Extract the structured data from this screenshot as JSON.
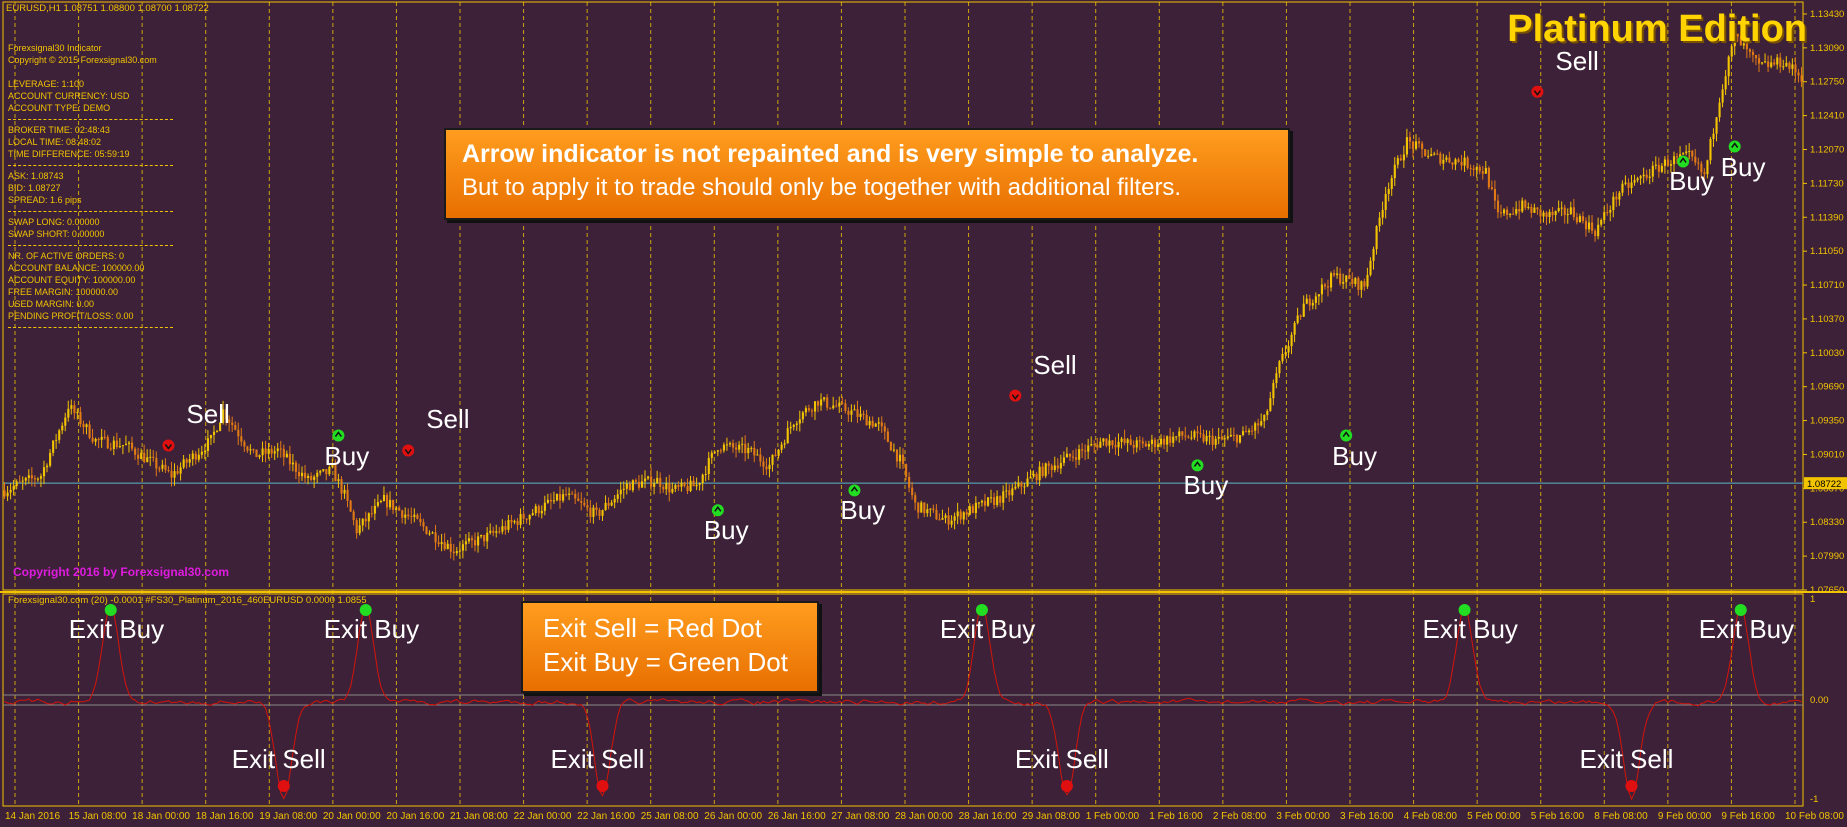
{
  "header": {
    "symbol_line": "EURUSD,H1  1.08751 1.08800 1.08700 1.08722",
    "title": "Platinum Edition",
    "copyright": "Copyright 2016 by Forexsignal30.com"
  },
  "info_panel": {
    "lines": [
      "Forexsignal30 Indicator",
      "Copyright © 2015 Forexsignal30.com",
      "",
      "LEVERAGE:   1:100",
      "ACCOUNT CURRENCY:   USD",
      "ACCOUNT TYPE:   DEMO",
      "---",
      "BROKER TIME:   02:48:43",
      "LOCAL TIME:   08:48:02",
      "TIME DIFFERENCE:   05:59:19",
      "---",
      "ASK:   1.08743",
      "BID:   1.08727",
      "SPREAD:   1.6 pips",
      "---",
      "SWAP LONG:   0.00000",
      "SWAP SHORT:   0.00000",
      "---",
      "NR. OF ACTIVE ORDERS:   0",
      "ACCOUNT BALANCE:   100000.00",
      "ACCOUNT EQUITY:   100000.00",
      "FREE MARGIN:   100000.00",
      "USED MARGIN:   0.00",
      "PENDING PROFIT/LOSS:   0.00",
      "---"
    ]
  },
  "callouts": {
    "main_line1": "Arrow indicator is not repainted and is very simple to analyze.",
    "main_line2": "But to apply it to trade should only be together with additional filters.",
    "exit_line1": "Exit Sell  = Red Dot",
    "exit_line2": "Exit Buy = Green Dot"
  },
  "indicator": {
    "label": "Forexsignal30.com (20) -0.0001   #FS30_Platinum_2016_460EURUSD 0.0000 1.0855"
  },
  "colors": {
    "background": "#3d2138",
    "grid": "#f2c400",
    "candle_up": "#f2c400",
    "candle_down": "#e07a14",
    "indicator_line": "#d4140a",
    "buy_dot": "#22dd22",
    "sell_dot": "#e01010",
    "price_line": "#5ab8c8"
  },
  "chart_data": {
    "type": "candlestick",
    "price_axis": {
      "ticks": [
        "1.13430",
        "1.13090",
        "1.12750",
        "1.12410",
        "1.12070",
        "1.11730",
        "1.11390",
        "1.11050",
        "1.10710",
        "1.10370",
        "1.10030",
        "1.09690",
        "1.09350",
        "1.09010",
        "1.08670",
        "1.08330",
        "1.07990",
        "1.07650"
      ],
      "range": [
        1.0765,
        1.1355
      ],
      "current_price": "1.08722"
    },
    "time_axis": {
      "ticks": [
        "14 Jan 2016",
        "15 Jan 08:00",
        "18 Jan 00:00",
        "18 Jan 16:00",
        "19 Jan 08:00",
        "20 Jan 00:00",
        "20 Jan 16:00",
        "21 Jan 08:00",
        "22 Jan 00:00",
        "22 Jan 16:00",
        "25 Jan 08:00",
        "26 Jan 00:00",
        "26 Jan 16:00",
        "27 Jan 08:00",
        "28 Jan 00:00",
        "28 Jan 16:00",
        "29 Jan 08:00",
        "1 Feb 00:00",
        "1 Feb 16:00",
        "2 Feb 08:00",
        "3 Feb 00:00",
        "3 Feb 16:00",
        "4 Feb 08:00",
        "5 Feb 00:00",
        "5 Feb 16:00",
        "8 Feb 08:00",
        "9 Feb 00:00",
        "9 Feb 16:00",
        "10 Feb 08:00"
      ]
    },
    "price_path": [
      [
        0,
        1.0865
      ],
      [
        12,
        1.088
      ],
      [
        20,
        1.094
      ],
      [
        21,
        1.095
      ],
      [
        30,
        1.0915
      ],
      [
        40,
        1.091
      ],
      [
        55,
        1.088
      ],
      [
        68,
        1.0915
      ],
      [
        72,
        1.0945
      ],
      [
        82,
        1.09
      ],
      [
        90,
        1.0905
      ],
      [
        100,
        1.0875
      ],
      [
        108,
        1.0885
      ],
      [
        112,
        1.086
      ],
      [
        116,
        1.0825
      ],
      [
        125,
        1.0855
      ],
      [
        135,
        1.0835
      ],
      [
        148,
        1.0805
      ],
      [
        160,
        1.082
      ],
      [
        175,
        1.0845
      ],
      [
        185,
        1.086
      ],
      [
        195,
        1.084
      ],
      [
        205,
        1.087
      ],
      [
        215,
        1.0875
      ],
      [
        220,
        1.0865
      ],
      [
        228,
        1.087
      ],
      [
        235,
        1.091
      ],
      [
        245,
        1.0905
      ],
      [
        252,
        1.089
      ],
      [
        260,
        1.0935
      ],
      [
        268,
        1.0955
      ],
      [
        278,
        1.0945
      ],
      [
        288,
        1.093
      ],
      [
        295,
        1.0895
      ],
      [
        300,
        1.085
      ],
      [
        310,
        1.0835
      ],
      [
        318,
        1.0845
      ],
      [
        330,
        1.086
      ],
      [
        342,
        1.0885
      ],
      [
        352,
        1.09
      ],
      [
        362,
        1.0915
      ],
      [
        375,
        1.091
      ],
      [
        388,
        1.092
      ],
      [
        400,
        1.0915
      ],
      [
        408,
        1.092
      ],
      [
        415,
        1.0935
      ],
      [
        420,
        1.099
      ],
      [
        428,
        1.105
      ],
      [
        438,
        1.108
      ],
      [
        448,
        1.107
      ],
      [
        455,
        1.1165
      ],
      [
        462,
        1.1215
      ],
      [
        470,
        1.12
      ],
      [
        480,
        1.1195
      ],
      [
        488,
        1.1185
      ],
      [
        492,
        1.114
      ],
      [
        500,
        1.115
      ],
      [
        508,
        1.114
      ],
      [
        516,
        1.1145
      ],
      [
        524,
        1.1125
      ],
      [
        532,
        1.1165
      ],
      [
        540,
        1.118
      ],
      [
        548,
        1.1195
      ],
      [
        555,
        1.12
      ],
      [
        560,
        1.118
      ],
      [
        565,
        1.126
      ],
      [
        570,
        1.132
      ],
      [
        578,
        1.129
      ],
      [
        586,
        1.1295
      ],
      [
        592,
        1.128
      ]
    ],
    "candle_count": 593,
    "signals": [
      {
        "label": "Sell",
        "type": "sell",
        "bar": 54,
        "price": 1.091
      },
      {
        "label": "Buy",
        "type": "buy",
        "bar": 110,
        "price": 1.092
      },
      {
        "label": "Sell",
        "type": "sell",
        "bar": 133,
        "price": 1.0905
      },
      {
        "label": "Buy",
        "type": "buy",
        "bar": 235,
        "price": 1.0845
      },
      {
        "label": "Buy",
        "type": "buy",
        "bar": 280,
        "price": 1.0865
      },
      {
        "label": "Sell",
        "type": "sell",
        "bar": 333,
        "price": 1.096
      },
      {
        "label": "Buy",
        "type": "buy",
        "bar": 393,
        "price": 1.089
      },
      {
        "label": "Buy",
        "type": "buy",
        "bar": 442,
        "price": 1.092
      },
      {
        "label": "Sell",
        "type": "sell",
        "bar": 505,
        "price": 1.1265
      },
      {
        "label": "Buy",
        "type": "buy",
        "bar": 553,
        "price": 1.1195
      },
      {
        "label": "Buy",
        "type": "buy",
        "bar": 570,
        "price": 1.121
      }
    ],
    "indicator_axis": {
      "ticks": [
        "1",
        "0.00",
        "-1"
      ],
      "range": [
        -1,
        1
      ]
    },
    "exit_signals": [
      {
        "label": "Exit Buy",
        "type": "exit_buy",
        "bar": 35
      },
      {
        "label": "Exit Buy",
        "type": "exit_buy",
        "bar": 119
      },
      {
        "label": "Exit Sell",
        "type": "exit_sell",
        "bar": 92
      },
      {
        "label": "Exit Sell",
        "type": "exit_sell",
        "bar": 197
      },
      {
        "label": "Exit Buy",
        "type": "exit_buy",
        "bar": 322
      },
      {
        "label": "Exit Sell",
        "type": "exit_sell",
        "bar": 350
      },
      {
        "label": "Exit Buy",
        "type": "exit_buy",
        "bar": 481
      },
      {
        "label": "Exit Sell",
        "type": "exit_sell",
        "bar": 536
      },
      {
        "label": "Exit Buy",
        "type": "exit_buy",
        "bar": 572
      }
    ]
  }
}
